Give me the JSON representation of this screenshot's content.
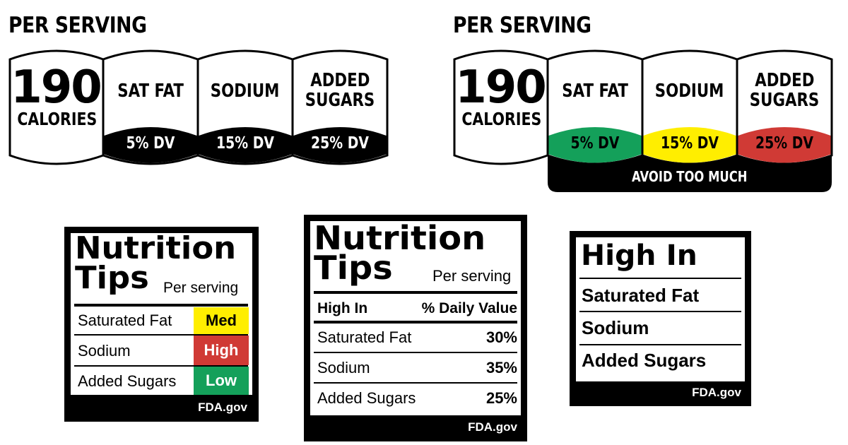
{
  "colors": {
    "black": "#000000",
    "green": "#14a05a",
    "yellow": "#ffee00",
    "red": "#d03a35",
    "white": "#ffffff"
  },
  "panel_left": {
    "title": "PER SERVING",
    "calories_value": "190",
    "calories_label": "CALORIES",
    "nutrients": [
      {
        "name_line1": "SAT FAT",
        "name_line2": "",
        "dv": "5% DV"
      },
      {
        "name_line1": "SODIUM",
        "name_line2": "",
        "dv": "15% DV"
      },
      {
        "name_line1": "ADDED",
        "name_line2": "SUGARS",
        "dv": "25% DV"
      }
    ]
  },
  "panel_right": {
    "title": "PER SERVING",
    "calories_value": "190",
    "calories_label": "CALORIES",
    "nutrients": [
      {
        "name_line1": "SAT FAT",
        "name_line2": "",
        "dv": "5% DV",
        "level_color": "green"
      },
      {
        "name_line1": "SODIUM",
        "name_line2": "",
        "dv": "15% DV",
        "level_color": "yellow"
      },
      {
        "name_line1": "ADDED",
        "name_line2": "SUGARS",
        "dv": "25% DV",
        "level_color": "red"
      }
    ],
    "banner": "AVOID TOO MUCH"
  },
  "tips_level": {
    "title_line1": "Nutrition",
    "title_line2": "Tips",
    "subtitle": "Per serving",
    "rows": [
      {
        "label": "Saturated Fat",
        "level": "Med",
        "level_color": "yellow"
      },
      {
        "label": "Sodium",
        "level": "High",
        "level_color": "red"
      },
      {
        "label": "Added Sugars",
        "level": "Low",
        "level_color": "green"
      }
    ],
    "footer": "FDA.gov"
  },
  "tips_dv": {
    "title_line1": "Nutrition",
    "title_line2": "Tips",
    "subtitle": "Per serving",
    "header_left": "High In",
    "header_right": "% Daily Value",
    "rows": [
      {
        "label": "Saturated Fat",
        "value": "30%"
      },
      {
        "label": "Sodium",
        "value": "35%"
      },
      {
        "label": "Added Sugars",
        "value": "25%"
      }
    ],
    "footer": "FDA.gov"
  },
  "high_in": {
    "title": "High In",
    "rows": [
      "Saturated Fat",
      "Sodium",
      "Added Sugars"
    ],
    "footer": "FDA.gov"
  }
}
